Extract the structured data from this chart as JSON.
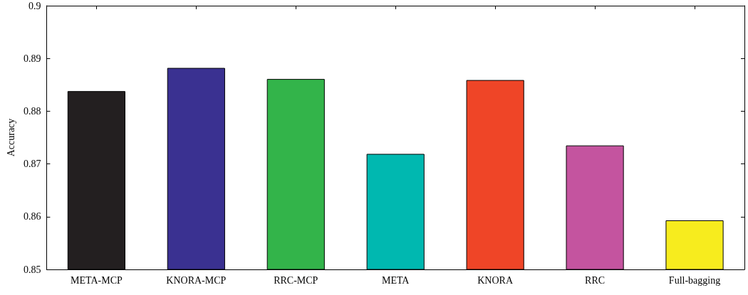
{
  "chart_data": {
    "type": "bar",
    "ylabel": "Accuracy",
    "categories": [
      "META-MCP",
      "KNORA-MCP",
      "RRC-MCP",
      "META",
      "KNORA",
      "RRC",
      "Full-bagging"
    ],
    "values": [
      0.8838,
      0.8882,
      0.8861,
      0.8719,
      0.8859,
      0.8735,
      0.8593
    ],
    "colors": [
      "#231f20",
      "#3a3191",
      "#33b44a",
      "#00b8b0",
      "#ef4527",
      "#c4549f",
      "#f7ec1e"
    ],
    "ylim": [
      0.85,
      0.9
    ],
    "yticks": [
      0.85,
      0.86,
      0.87,
      0.88,
      0.89,
      0.9
    ],
    "grid": false
  }
}
